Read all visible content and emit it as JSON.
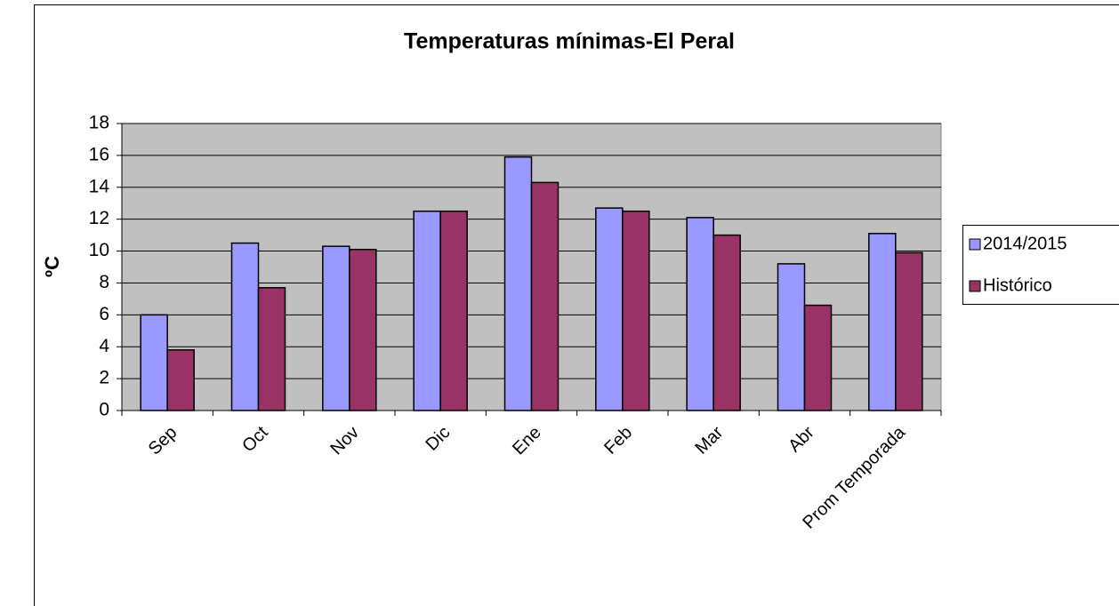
{
  "chart_data": {
    "type": "bar",
    "title": "Temperaturas mínimas-El Peral",
    "ylabel": "ºC",
    "categories": [
      "Sep",
      "Oct",
      "Nov",
      "Dic",
      "Ene",
      "Feb",
      "Mar",
      "Abr",
      "Prom Temporada"
    ],
    "series": [
      {
        "name": "2014/2015",
        "color": "#9999ff",
        "values": [
          6.0,
          10.5,
          10.3,
          12.5,
          15.9,
          12.7,
          12.1,
          9.2,
          11.1
        ]
      },
      {
        "name": "Histórico",
        "color": "#993366",
        "values": [
          3.8,
          7.7,
          10.1,
          12.5,
          14.3,
          12.5,
          11.0,
          6.6,
          9.9
        ]
      }
    ],
    "ylim": [
      0,
      18
    ],
    "yticks": [
      0,
      2,
      4,
      6,
      8,
      10,
      12,
      14,
      16,
      18
    ],
    "grid": true,
    "legend": "right"
  }
}
